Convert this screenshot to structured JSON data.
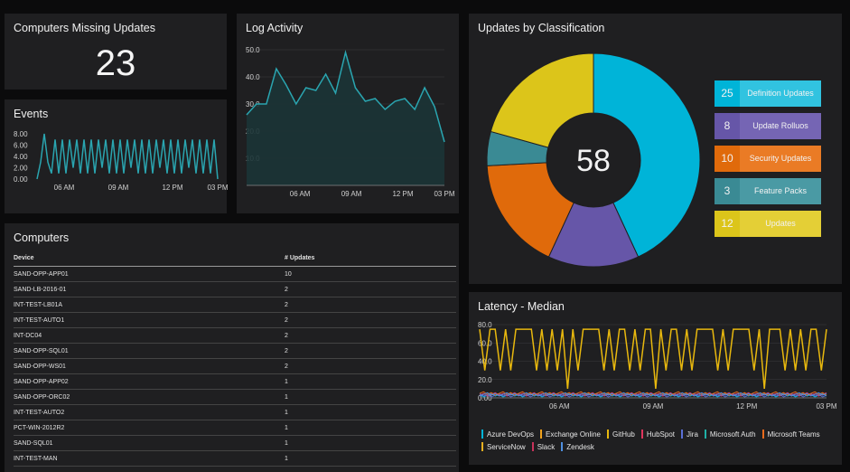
{
  "missing_updates": {
    "title": "Computers Missing Updates",
    "value": "23"
  },
  "events": {
    "title": "Events"
  },
  "log_activity": {
    "title": "Log Activity"
  },
  "computers": {
    "title": "Computers",
    "columns": [
      "Device",
      "# Updates"
    ],
    "rows": [
      [
        "SAND-OPP-APP01",
        "10"
      ],
      [
        "SAND-LB-2016-01",
        "2"
      ],
      [
        "INT-TEST-LB01A",
        "2"
      ],
      [
        "INT-TEST-AUTO1",
        "2"
      ],
      [
        "INT-DC04",
        "2"
      ],
      [
        "SAND-OPP-SQL01",
        "2"
      ],
      [
        "SAND-OPP-WS01",
        "2"
      ],
      [
        "SAND-OPP-APP02",
        "1"
      ],
      [
        "SAND-OPP-ORC02",
        "1"
      ],
      [
        "INT-TEST-AUTO2",
        "1"
      ],
      [
        "PCT-WIN-2012R2",
        "1"
      ],
      [
        "SAND-SQL01",
        "1"
      ],
      [
        "INT-TEST-MAN",
        "1"
      ]
    ]
  },
  "classification": {
    "title": "Updates by Classification",
    "total": "58",
    "legend": [
      {
        "count": "25",
        "label": "Definition Updates",
        "num_color": "#00b4d8",
        "label_color": "#31c3e0"
      },
      {
        "count": "8",
        "label": "Update Rolluos",
        "num_color": "#6656a8",
        "label_color": "#7565b4"
      },
      {
        "count": "10",
        "label": "Security Updates",
        "num_color": "#e06a0b",
        "label_color": "#ea7b25"
      },
      {
        "count": "3",
        "label": "Feature Packs",
        "num_color": "#3a8a94",
        "label_color": "#4a9aa4"
      },
      {
        "count": "12",
        "label": "Updates",
        "num_color": "#dcc51a",
        "label_color": "#e4cf36"
      }
    ]
  },
  "latency": {
    "title": "Latency - Median",
    "legend": [
      {
        "label": "Azure DevOps",
        "color": "#00b4d8"
      },
      {
        "label": "Exchange Online",
        "color": "#f0a21c"
      },
      {
        "label": "GitHub",
        "color": "#e8b80e"
      },
      {
        "label": "HubSpot",
        "color": "#e0355d"
      },
      {
        "label": "Jira",
        "color": "#5a6fd6"
      },
      {
        "label": "Microsoft Auth",
        "color": "#1fb0a6"
      },
      {
        "label": "Microsoft Teams",
        "color": "#e86a1c"
      },
      {
        "label": "ServiceNow",
        "color": "#e8b020"
      },
      {
        "label": "Slack",
        "color": "#c8325a"
      },
      {
        "label": "Zendesk",
        "color": "#4f8fe0"
      }
    ]
  },
  "chart_data": [
    {
      "type": "line",
      "title": "Events",
      "x_ticks": [
        "06 AM",
        "09 AM",
        "12 PM",
        "03 PM"
      ],
      "y_ticks": [
        "8.00",
        "6.00",
        "4.00",
        "2.00",
        "0.00"
      ],
      "ylim": [
        0,
        8
      ],
      "color": "#2aa5b0",
      "values": [
        0,
        3,
        8,
        3,
        1,
        7,
        1,
        7,
        1,
        7,
        2,
        7,
        1,
        7,
        1,
        7,
        1,
        7,
        2,
        7,
        1,
        7,
        1,
        7,
        1,
        7,
        2,
        7,
        1,
        7,
        1,
        7,
        1,
        7,
        2,
        7,
        1,
        7,
        1,
        7,
        1,
        7,
        2,
        7,
        1,
        7,
        1,
        7,
        1,
        7,
        0
      ]
    },
    {
      "type": "area",
      "title": "Log Activity",
      "x_ticks": [
        "06 AM",
        "09 AM",
        "12 PM",
        "03 PM"
      ],
      "y_ticks": [
        "50.0",
        "40.0",
        "30.0",
        "20.0",
        "10.0"
      ],
      "ylim": [
        0,
        50
      ],
      "color": "#2aa5b0",
      "values": [
        26,
        30,
        30,
        43,
        37,
        30,
        36,
        35,
        41,
        34,
        49,
        36,
        31,
        32,
        28,
        31,
        32,
        28,
        36,
        29,
        16
      ]
    },
    {
      "type": "pie",
      "title": "Updates by Classification",
      "total": 58,
      "categories": [
        "Definition Updates",
        "Update Rolluos",
        "Security Updates",
        "Feature Packs",
        "Updates"
      ],
      "values": [
        25,
        8,
        10,
        3,
        12
      ],
      "colors": [
        "#00b4d8",
        "#6656a8",
        "#e06a0b",
        "#3a8a94",
        "#dcc51a"
      ]
    },
    {
      "type": "line",
      "title": "Latency - Median",
      "x_ticks": [
        "06 AM",
        "09 AM",
        "12 PM",
        "03 PM"
      ],
      "y_ticks": [
        "80.0",
        "60.0",
        "40.0",
        "20.0",
        "0.00"
      ],
      "ylim": [
        0,
        80
      ],
      "series": [
        {
          "name": "GitHub",
          "color": "#e8b80e",
          "values": [
            75,
            30,
            75,
            75,
            30,
            75,
            30,
            75,
            75,
            75,
            75,
            30,
            75,
            30,
            75,
            30,
            75,
            10,
            75,
            30,
            75,
            75,
            75,
            75,
            30,
            75,
            30,
            75,
            75,
            30,
            75,
            30,
            75,
            75,
            10,
            75,
            30,
            75,
            75,
            30,
            75,
            30,
            75,
            75,
            75,
            75,
            30,
            75,
            30,
            75,
            75,
            75,
            75,
            30,
            75,
            10,
            75,
            75,
            75,
            30,
            75,
            30,
            75,
            30,
            75,
            75,
            30,
            75
          ]
        },
        {
          "name": "Azure DevOps",
          "color": "#00b4d8",
          "noise": true,
          "base": 1
        },
        {
          "name": "HubSpot",
          "color": "#e0355d",
          "noise": true,
          "base": 2
        },
        {
          "name": "Jira",
          "color": "#5a6fd6",
          "noise": true,
          "base": 1
        },
        {
          "name": "Microsoft Teams",
          "color": "#e86a1c",
          "noise": true,
          "base": 3
        },
        {
          "name": "Zendesk",
          "color": "#4f8fe0",
          "noise": true,
          "base": 2
        }
      ]
    }
  ]
}
